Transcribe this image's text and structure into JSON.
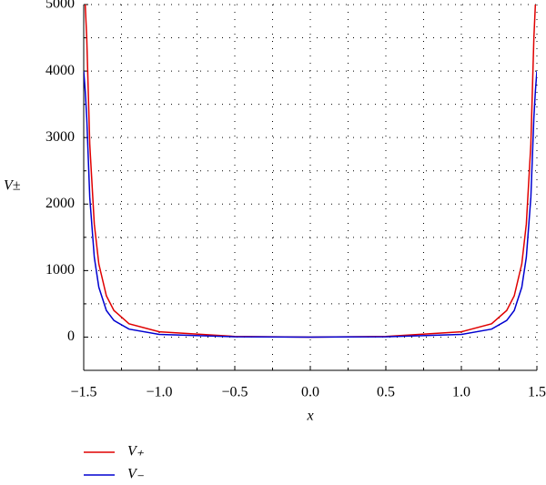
{
  "chart_data": {
    "type": "line",
    "xlabel": "x",
    "ylabel": "V±",
    "x": [
      -1.5,
      -1.49,
      -1.48,
      -1.46,
      -1.43,
      -1.4,
      -1.35,
      -1.3,
      -1.2,
      -1.0,
      -0.5,
      0,
      0.5,
      1.0,
      1.2,
      1.3,
      1.35,
      1.4,
      1.43,
      1.46,
      1.48,
      1.49,
      1.5
    ],
    "series": [
      {
        "name": "V₊",
        "color": "#e00000",
        "values": [
          null,
          5000,
          4500,
          2900,
          1700,
          1100,
          620,
          400,
          200,
          80,
          10,
          0,
          10,
          80,
          200,
          400,
          620,
          1100,
          1700,
          2900,
          4500,
          5000,
          null
        ]
      },
      {
        "name": "V₋",
        "color": "#0000d0",
        "values": [
          4000,
          3700,
          3300,
          2100,
          1200,
          750,
          400,
          250,
          120,
          40,
          5,
          0,
          5,
          40,
          120,
          250,
          400,
          750,
          1200,
          2100,
          3300,
          3700,
          4000
        ]
      }
    ],
    "xlim": [
      -1.5,
      1.5
    ],
    "xticks": [
      {
        "value": -1.5,
        "label": "−1.5"
      },
      {
        "value": -1.0,
        "label": "−1.0"
      },
      {
        "value": -0.5,
        "label": "−0.5"
      },
      {
        "value": 0,
        "label": "0.0"
      },
      {
        "value": 0.5,
        "label": "0.5"
      },
      {
        "value": 1.0,
        "label": "1.0"
      },
      {
        "value": 1.5,
        "label": "1.5"
      }
    ],
    "xminorticks": [
      -1.25,
      -0.75,
      -0.25,
      0.25,
      0.75,
      1.25
    ],
    "ylim": [
      -500,
      5000
    ],
    "yticks": [
      0,
      1000,
      2000,
      3000,
      4000,
      5000
    ],
    "yminorticks": [
      -500,
      500,
      1500,
      2500,
      3500,
      4500
    ],
    "grid": true
  }
}
